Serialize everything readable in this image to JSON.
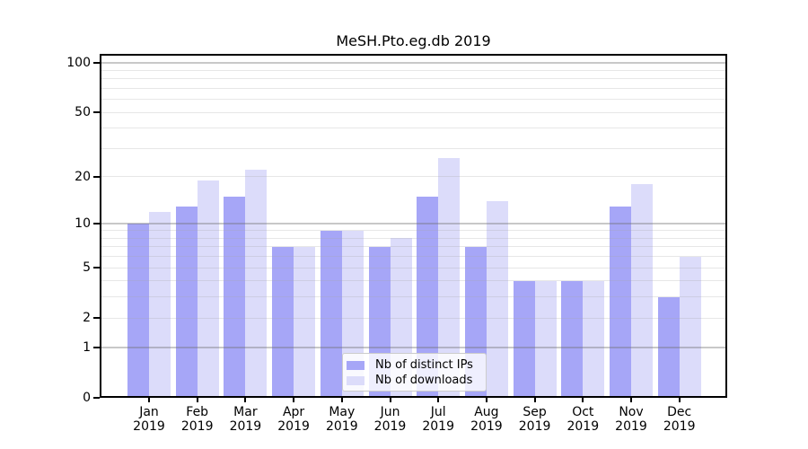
{
  "chart_data": {
    "type": "bar",
    "title": "MeSH.Pto.eg.db 2019",
    "x": {
      "months": [
        "Jan",
        "Feb",
        "Mar",
        "Apr",
        "May",
        "Jun",
        "Jul",
        "Aug",
        "Sep",
        "Oct",
        "Nov",
        "Dec"
      ],
      "year": "2019"
    },
    "series": [
      {
        "name": "Nb of distinct IPs",
        "color": "#a6a6f7",
        "values": [
          10,
          13,
          15,
          7,
          9,
          7,
          15,
          7,
          4,
          4,
          13,
          3
        ]
      },
      {
        "name": "Nb of downloads",
        "color": "#dcdcfa",
        "values": [
          12,
          19,
          22,
          7,
          9,
          8,
          26,
          14,
          4,
          4,
          18,
          6
        ]
      }
    ],
    "y_axis": {
      "scale": "log1p",
      "ticks": [
        0,
        1,
        2,
        5,
        10,
        20,
        50,
        100
      ],
      "major_gridlines": [
        1,
        10,
        100
      ],
      "minor_gridlines": [
        2,
        3,
        4,
        5,
        6,
        7,
        8,
        9,
        20,
        30,
        40,
        50,
        60,
        70,
        80,
        90
      ],
      "max": 113
    },
    "legend": {
      "position": "lower center"
    },
    "grid": true,
    "colors": {
      "major_grid": "#c9c9c9",
      "minor_grid": "#eaeaea",
      "spine": "#000000",
      "background": "#ffffff"
    }
  }
}
